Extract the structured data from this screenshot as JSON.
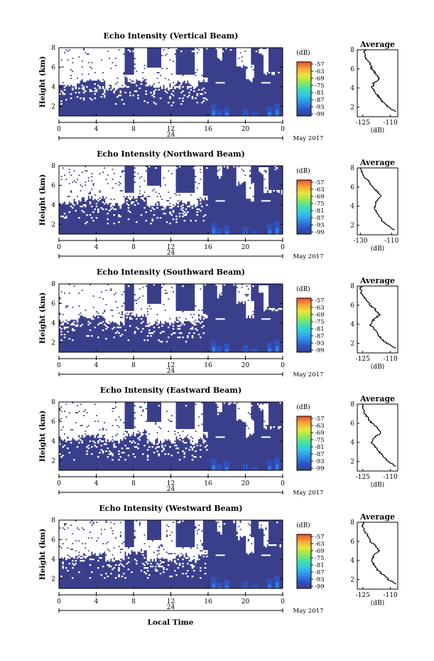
{
  "figure": {
    "xlabel": "Local Time",
    "month_label": "May 2017",
    "day_label": "24",
    "x_ticks": [
      "0",
      "4",
      "8",
      "12",
      "16",
      "20",
      "0"
    ],
    "colorbar_unit": "(dB)",
    "colorbar_ticks": [
      "-57",
      "-63",
      "-69",
      "-75",
      "-81",
      "-87",
      "-93",
      "-99"
    ],
    "colors": {
      "background_echo": "#3a3f8c",
      "no_data": "#ffffff",
      "scale": [
        "#3a3f8c",
        "#2f55c8",
        "#2f8fe6",
        "#33c3e8",
        "#3fe0b0",
        "#8fe85a",
        "#e6e83a",
        "#f5a83a",
        "#f04a2a"
      ]
    }
  },
  "chart_data": [
    {
      "type": "heatmap",
      "title": "Echo Intensity (Vertical Beam)",
      "ylabel": "Height (km)",
      "xlim": [
        0,
        24
      ],
      "ylim": [
        1,
        8
      ],
      "y_ticks": [
        "2",
        "4",
        "6",
        "8"
      ],
      "profile": {
        "title": "Average",
        "xlabel": "(dB)",
        "x_ticks": [
          "-125",
          "-110"
        ],
        "xlim": [
          -128,
          -106
        ],
        "ylim": [
          1,
          8
        ],
        "heights": [
          1.5,
          2.0,
          2.5,
          3.0,
          3.5,
          4.0,
          4.5,
          5.0,
          5.5,
          6.0,
          6.5,
          7.0,
          7.5,
          8.0
        ],
        "values": [
          -107,
          -111,
          -114,
          -116,
          -118,
          -120,
          -119,
          -116,
          -118,
          -120,
          -121,
          -123,
          -124,
          -124
        ]
      }
    },
    {
      "type": "heatmap",
      "title": "Echo Intensity (Northward Beam)",
      "ylabel": "Height (km)",
      "xlim": [
        0,
        24
      ],
      "ylim": [
        1,
        8
      ],
      "y_ticks": [
        "2",
        "4",
        "6",
        "8"
      ],
      "profile": {
        "title": "Average",
        "xlabel": "(dB)",
        "x_ticks": [
          "-130",
          "-110"
        ],
        "xlim": [
          -132,
          -106
        ],
        "ylim": [
          1,
          8
        ],
        "heights": [
          1.5,
          2.0,
          2.5,
          3.0,
          3.5,
          4.0,
          4.5,
          5.0,
          5.5,
          6.0,
          6.5,
          7.0,
          7.5,
          8.0
        ],
        "values": [
          -108,
          -113,
          -116,
          -118,
          -120,
          -121,
          -120,
          -117,
          -119,
          -122,
          -124,
          -127,
          -129,
          -130
        ]
      }
    },
    {
      "type": "heatmap",
      "title": "Echo Intensity (Southward Beam)",
      "ylabel": "Height (km)",
      "xlim": [
        0,
        24
      ],
      "ylim": [
        1,
        8
      ],
      "y_ticks": [
        "2",
        "4",
        "6",
        "8"
      ],
      "profile": {
        "title": "Average",
        "xlabel": "(dB)",
        "x_ticks": [
          "-125",
          "-110"
        ],
        "xlim": [
          -128,
          -106
        ],
        "ylim": [
          1,
          8
        ],
        "heights": [
          1.5,
          2.0,
          2.5,
          3.0,
          3.5,
          4.0,
          4.5,
          5.0,
          5.5,
          6.0,
          6.5,
          7.0,
          7.5,
          8.0
        ],
        "values": [
          -107,
          -112,
          -115,
          -117,
          -119,
          -121,
          -119,
          -116,
          -118,
          -121,
          -123,
          -125,
          -126,
          -126
        ]
      }
    },
    {
      "type": "heatmap",
      "title": "Echo Intensity (Eastward Beam)",
      "ylabel": "Height (km)",
      "xlim": [
        0,
        24
      ],
      "ylim": [
        1,
        8
      ],
      "y_ticks": [
        "2",
        "4",
        "6",
        "8"
      ],
      "profile": {
        "title": "Average",
        "xlabel": "(dB)",
        "x_ticks": [
          "-125",
          "-110"
        ],
        "xlim": [
          -128,
          -106
        ],
        "ylim": [
          1,
          8
        ],
        "heights": [
          1.5,
          2.0,
          2.5,
          3.0,
          3.5,
          4.0,
          4.5,
          5.0,
          5.5,
          6.0,
          6.5,
          7.0,
          7.5,
          8.0
        ],
        "values": [
          -107,
          -111,
          -114,
          -116,
          -118,
          -120,
          -119,
          -115,
          -117,
          -120,
          -122,
          -124,
          -125,
          -125
        ]
      }
    },
    {
      "type": "heatmap",
      "title": "Echo Intensity (Westward Beam)",
      "ylabel": "Height (km)",
      "xlim": [
        0,
        24
      ],
      "ylim": [
        1,
        8
      ],
      "y_ticks": [
        "2",
        "4",
        "6",
        "8"
      ],
      "profile": {
        "title": "Average",
        "xlabel": "(dB)",
        "x_ticks": [
          "-125",
          "-110"
        ],
        "xlim": [
          -128,
          -106
        ],
        "ylim": [
          1,
          8
        ],
        "heights": [
          1.5,
          2.0,
          2.5,
          3.0,
          3.5,
          4.0,
          4.5,
          5.0,
          5.5,
          6.0,
          6.5,
          7.0,
          7.5,
          8.0
        ],
        "values": [
          -107,
          -111,
          -114,
          -117,
          -119,
          -120,
          -119,
          -116,
          -118,
          -121,
          -122,
          -124,
          -125,
          -125
        ]
      }
    }
  ]
}
